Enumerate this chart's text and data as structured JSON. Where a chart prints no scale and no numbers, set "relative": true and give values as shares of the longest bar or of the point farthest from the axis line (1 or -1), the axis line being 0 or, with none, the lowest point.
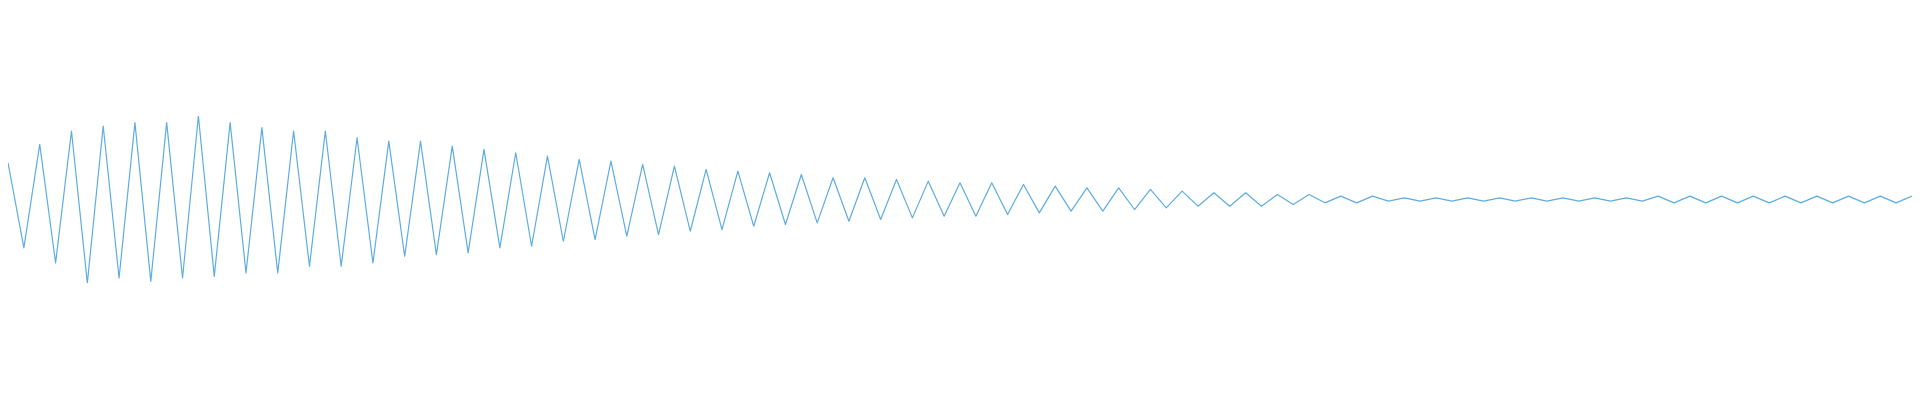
{
  "chart_data": {
    "type": "line",
    "relative": true,
    "categories": [
      null,
      null,
      null,
      null,
      null,
      null,
      null,
      null,
      null,
      null,
      null,
      null,
      null,
      null,
      null,
      null,
      null,
      null,
      null,
      null,
      null,
      null,
      null,
      null,
      null,
      null,
      null,
      null,
      null,
      null,
      null,
      null,
      null,
      null,
      null,
      null,
      null,
      null,
      null,
      null,
      null,
      null,
      null,
      null,
      null,
      null,
      null,
      null,
      null,
      null,
      null,
      null,
      null,
      null,
      null,
      null,
      null,
      null,
      null,
      null,
      null,
      null,
      null,
      null,
      null,
      null,
      null,
      null,
      null,
      null,
      null,
      null,
      null,
      null,
      null,
      null,
      null,
      null,
      null,
      null,
      null,
      null,
      null,
      null,
      null,
      null,
      null,
      null,
      null,
      null,
      null,
      null,
      null,
      null,
      null,
      null,
      null,
      null,
      null,
      null,
      null,
      null,
      null,
      null,
      null,
      null,
      null,
      null,
      null,
      null,
      null,
      null,
      null,
      null,
      null,
      null,
      null,
      null,
      null,
      null,
      null
    ],
    "series": [
      {
        "color": "#5dade2",
        "values": [
          0.72,
          0.21,
          0.83,
          0.12,
          0.91,
          0,
          0.94,
          0.03,
          0.96,
          0.01,
          0.96,
          0.03,
          1,
          0.04,
          0.96,
          0.06,
          0.93,
          0.06,
          0.91,
          0.1,
          0.91,
          0.1,
          0.87,
          0.12,
          0.85,
          0.16,
          0.85,
          0.17,
          0.82,
          0.18,
          0.8,
          0.21,
          0.78,
          0.22,
          0.76,
          0.25,
          0.74,
          0.26,
          0.73,
          0.28,
          0.71,
          0.29,
          0.7,
          0.31,
          0.68,
          0.32,
          0.67,
          0.34,
          0.66,
          0.35,
          0.65,
          0.36,
          0.63,
          0.37,
          0.63,
          0.38,
          0.62,
          0.39,
          0.61,
          0.4,
          0.6,
          0.4,
          0.6,
          0.41,
          0.59,
          0.42,
          0.58,
          0.43,
          0.57,
          0.43,
          0.57,
          0.44,
          0.56,
          0.45,
          0.55,
          0.46,
          0.54,
          0.46,
          0.54,
          0.46,
          0.53,
          0.47,
          0.53,
          0.48,
          0.52,
          0.48,
          0.52,
          0.49,
          0.51,
          0.49,
          0.51,
          0.49,
          0.51,
          0.49,
          0.51,
          0.49,
          0.51,
          0.49,
          0.51,
          0.49,
          0.51,
          0.49,
          0.51,
          0.49,
          0.52,
          0.48,
          0.52,
          0.48,
          0.52,
          0.48,
          0.52,
          0.48,
          0.52,
          0.48,
          0.52,
          0.48,
          0.52,
          0.48,
          0.52,
          0.48,
          0.52
        ]
      }
    ]
  }
}
